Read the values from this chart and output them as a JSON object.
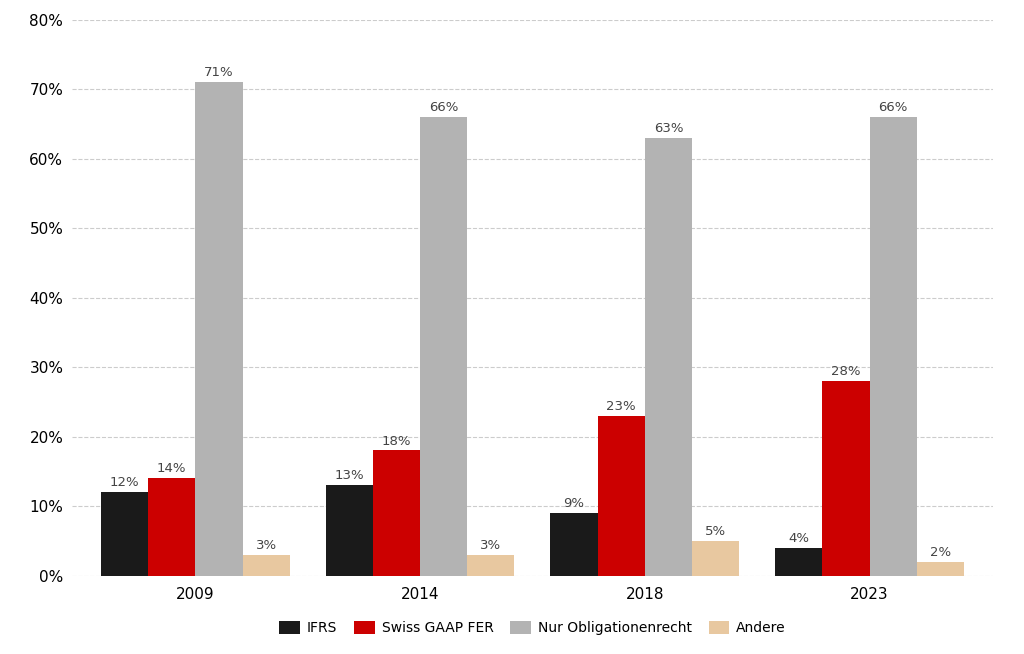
{
  "years": [
    "2009",
    "2014",
    "2018",
    "2023"
  ],
  "series": {
    "IFRS": [
      12,
      13,
      9,
      4
    ],
    "Swiss GAAP FER": [
      14,
      18,
      23,
      28
    ],
    "Nur Obligationenrecht": [
      71,
      66,
      63,
      66
    ],
    "Andere": [
      3,
      3,
      5,
      2
    ]
  },
  "colors": {
    "IFRS": "#1a1a1a",
    "Swiss GAAP FER": "#cc0000",
    "Nur Obligationenrecht": "#b3b3b3",
    "Andere": "#e8c8a0"
  },
  "ylim": [
    0,
    80
  ],
  "yticks": [
    0,
    10,
    20,
    30,
    40,
    50,
    60,
    70,
    80
  ],
  "bar_width": 0.21,
  "background_color": "#ffffff",
  "grid_color": "#cccccc",
  "label_fontsize": 9.5,
  "tick_fontsize": 11,
  "legend_fontsize": 10
}
